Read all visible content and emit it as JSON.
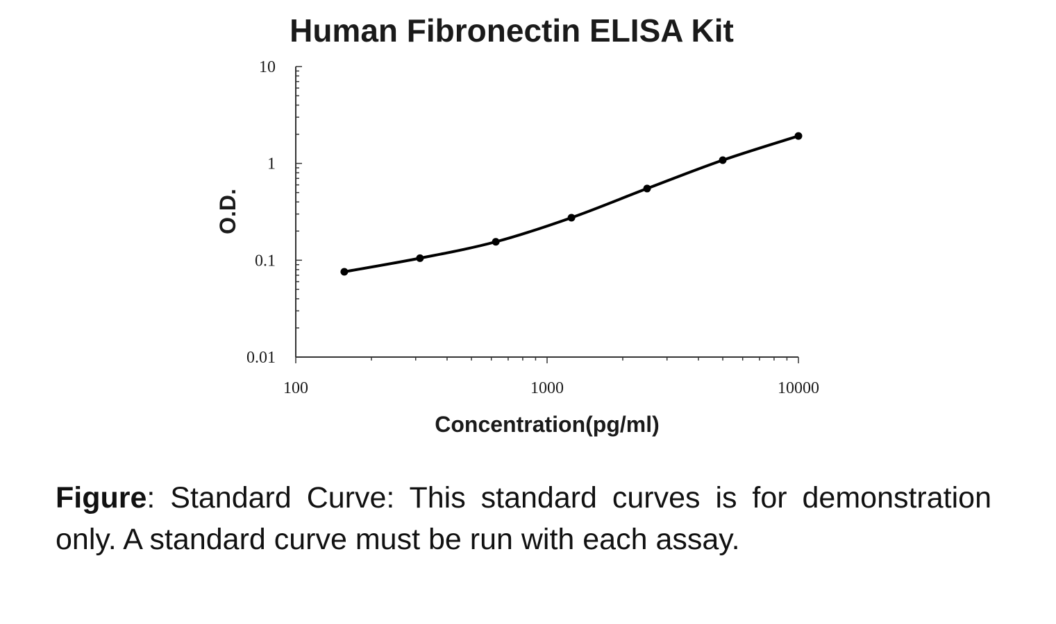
{
  "chart_data": {
    "type": "line",
    "title": "Human Fibronectin ELISA Kit",
    "xlabel": "Concentration(pg/ml)",
    "ylabel": "O.D.",
    "xscale": "log",
    "yscale": "log",
    "xlim": [
      100,
      10000
    ],
    "ylim": [
      0.01,
      10
    ],
    "x_ticks": [
      {
        "value": 100,
        "label": "100"
      },
      {
        "value": 1000,
        "label": "1000"
      },
      {
        "value": 10000,
        "label": "10000"
      }
    ],
    "y_ticks": [
      {
        "value": 0.01,
        "label": "0.01"
      },
      {
        "value": 0.1,
        "label": "0.1"
      },
      {
        "value": 1,
        "label": "1"
      },
      {
        "value": 10,
        "label": "10"
      }
    ],
    "grid": false,
    "legend": "none",
    "series": [
      {
        "x": [
          156,
          312,
          625,
          1250,
          2500,
          5000,
          10000
        ],
        "y": [
          0.076,
          0.105,
          0.155,
          0.275,
          0.55,
          1.08,
          1.92
        ]
      }
    ],
    "line_color": "#000000"
  },
  "caption": {
    "prefix": "Figure",
    "text": ":  Standard Curve: This standard curves is for demonstration only. A standard curve must be run with each assay."
  }
}
